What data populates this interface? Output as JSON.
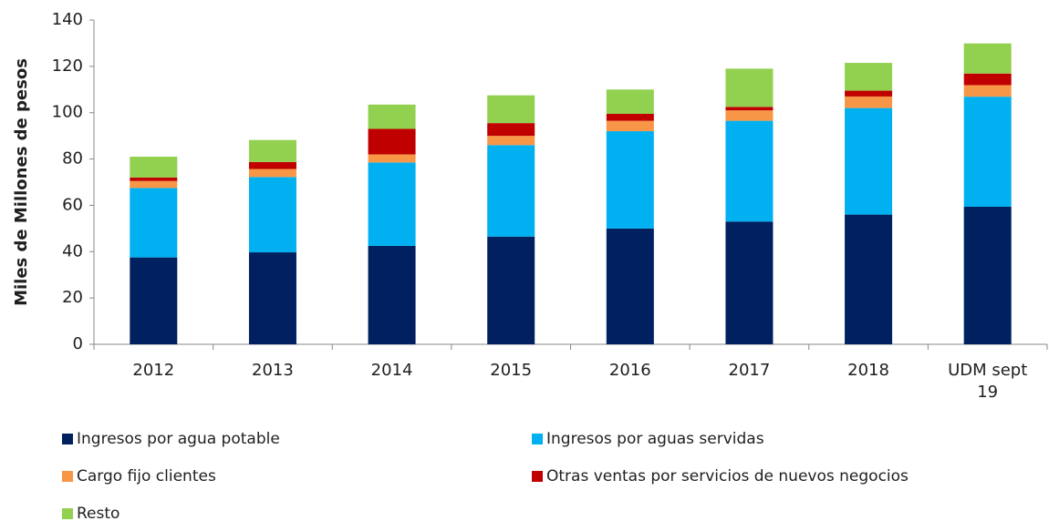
{
  "chart_data": {
    "type": "stacked_bar",
    "y_label": "Miles de Millones de pesos",
    "categories": [
      "2012",
      "2013",
      "2014",
      "2015",
      "2016",
      "2017",
      "2018",
      "UDM sept 19"
    ],
    "series": [
      {
        "name": "Ingresos por agua potable",
        "color": "#002060",
        "values": [
          37.5,
          39.7,
          42.5,
          46.5,
          50,
          53,
          56,
          59.4
        ]
      },
      {
        "name": "Ingresos por aguas servidas",
        "color": "#00b0f0",
        "values": [
          30,
          32.5,
          36,
          39.5,
          42,
          43.5,
          46,
          47.5
        ]
      },
      {
        "name": "Cargo fijo clientes",
        "color": "#f79646",
        "values": [
          3,
          3.5,
          3.5,
          4,
          4.5,
          4.5,
          5,
          5
        ]
      },
      {
        "name": "Otras ventas por servicios de nuevos negocios",
        "color": "#c00000",
        "values": [
          1.5,
          3,
          11,
          5.5,
          3,
          1.5,
          2.5,
          5
        ]
      },
      {
        "name": "Resto",
        "color": "#92d050",
        "values": [
          9,
          9.5,
          10.5,
          12,
          10.5,
          16.5,
          12,
          13
        ]
      }
    ],
    "ylim": [
      0,
      140
    ],
    "yticks": [
      0,
      20,
      40,
      60,
      80,
      100,
      120,
      140
    ],
    "grid": false
  }
}
